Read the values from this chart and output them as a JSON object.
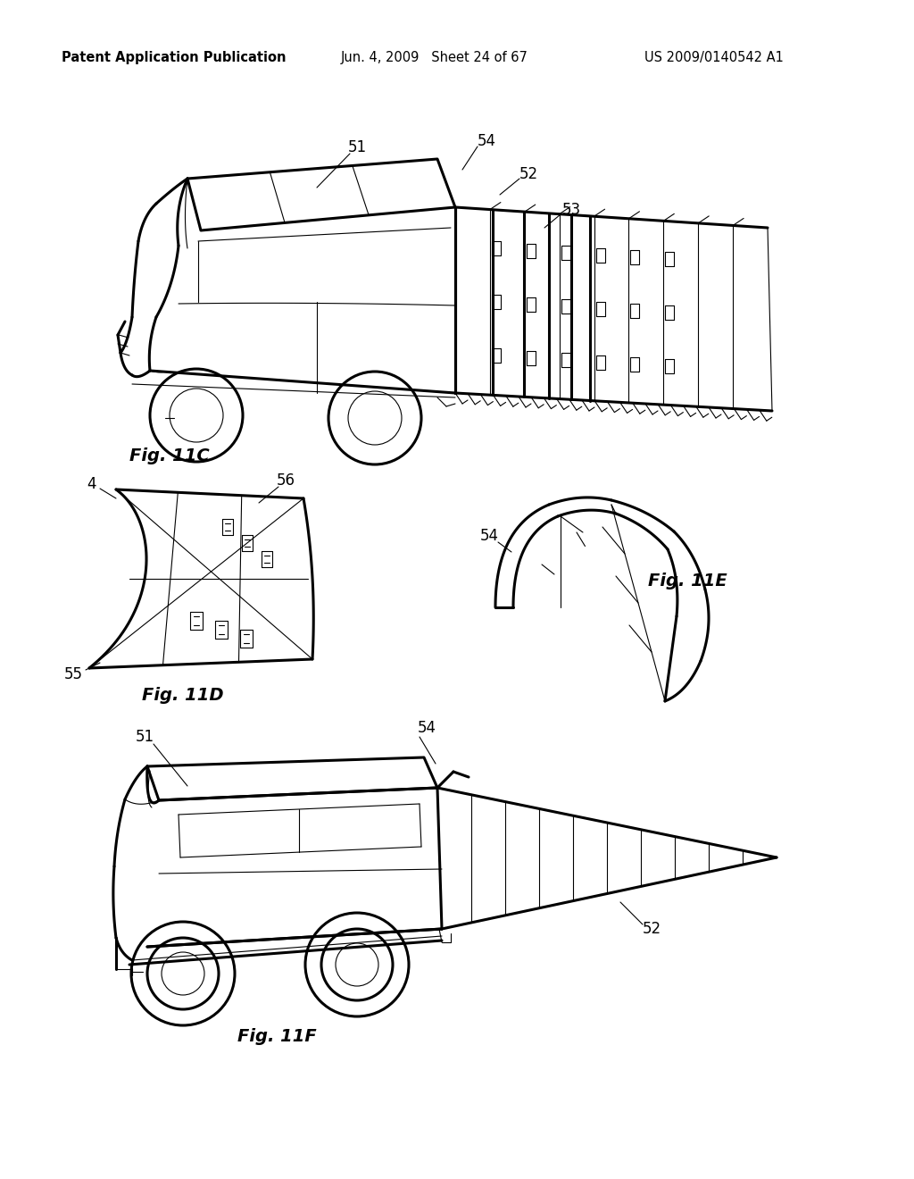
{
  "background_color": "#ffffff",
  "header_left": "Patent Application Publication",
  "header_center": "Jun. 4, 2009   Sheet 24 of 67",
  "header_right": "US 2009/0140542 A1",
  "line_color": "#000000",
  "text_color": "#000000",
  "fig_label_fontsize": 14,
  "header_fontsize": 10.5,
  "ref_fontsize": 12,
  "lw_main": 1.5,
  "lw_thin": 0.8,
  "lw_thick": 2.2
}
